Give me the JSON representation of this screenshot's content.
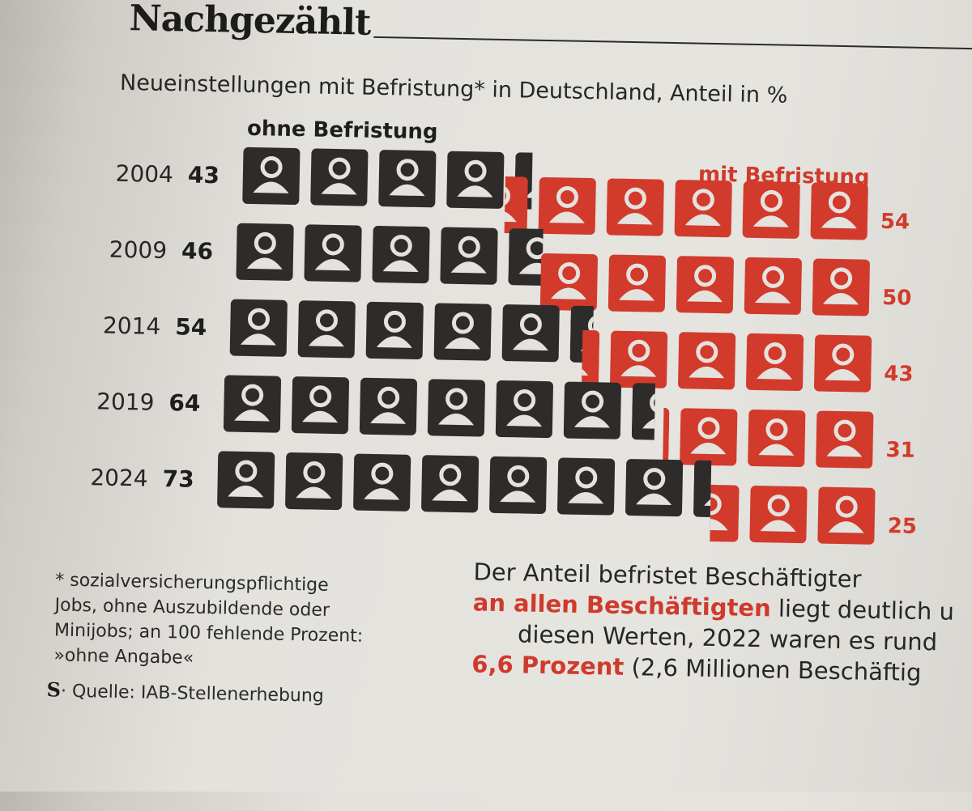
{
  "title": "Nachgezählt",
  "subtitle": "Neueinstellungen mit Befristung* in Deutschland, Anteil in %",
  "legend": {
    "ohne": "ohne Befristung",
    "mit": "mit Befristung"
  },
  "colors": {
    "ohne": "#2e2b2b",
    "mit": "#d23a2c",
    "icon_figure": "#e4e2dd"
  },
  "chart_data": {
    "type": "pictogram-bar",
    "categories": [
      "2004",
      "2009",
      "2014",
      "2019",
      "2024"
    ],
    "series": [
      {
        "name": "ohne Befristung",
        "values": [
          43,
          46,
          54,
          64,
          73
        ]
      },
      {
        "name": "mit Befristung",
        "values": [
          54,
          50,
          43,
          31,
          25
        ]
      }
    ],
    "unit": "%",
    "icon_value": 10
  },
  "footnote": {
    "lines": [
      "* sozialversicherungspflichtige",
      "Jobs, ohne Auszubildende oder",
      "Minijobs; an 100 fehlende Prozent:",
      "»ohne Angabe«"
    ]
  },
  "source": {
    "logo": "S",
    "text": "Quelle: IAB-Stellenerhebung"
  },
  "side_text": {
    "line1": "Der Anteil befristet Beschäftigter",
    "line2_red": "an allen Beschäftigten",
    "line2_rest": " liegt deutlich u",
    "line3": "diesen Werten, 2022 waren es rund",
    "line4_red": "6,6 Prozent",
    "line4_rest": " (2,6 Millionen Beschäftig"
  }
}
